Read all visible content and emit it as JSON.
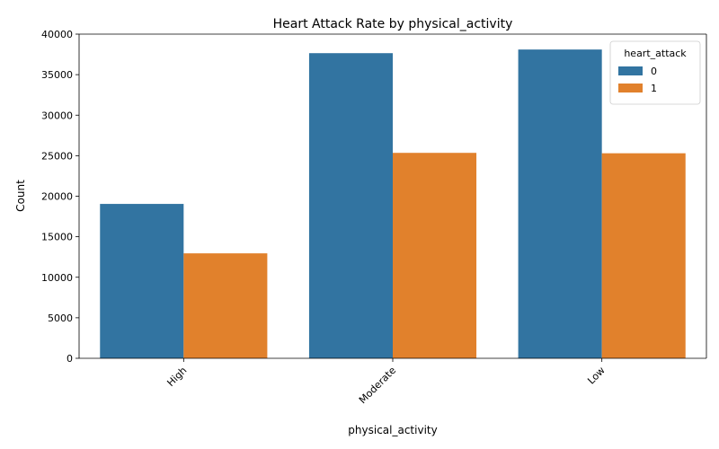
{
  "chart_data": {
    "type": "bar",
    "title": "Heart Attack Rate by physical_activity",
    "xlabel": "physical_activity",
    "ylabel": "Count",
    "categories": [
      "High",
      "Moderate",
      "Low"
    ],
    "series": [
      {
        "name": "0",
        "values": [
          19050,
          37650,
          38100
        ],
        "color": "#3274a1"
      },
      {
        "name": "1",
        "values": [
          12950,
          25350,
          25300
        ],
        "color": "#e1812c"
      }
    ],
    "ylim": [
      0,
      40000
    ],
    "yticks": [
      0,
      5000,
      10000,
      15000,
      20000,
      25000,
      30000,
      35000,
      40000
    ],
    "legend": {
      "title": "heart_attack",
      "placement": "top-right"
    },
    "grid": false,
    "x_tick_rotation": 45
  }
}
